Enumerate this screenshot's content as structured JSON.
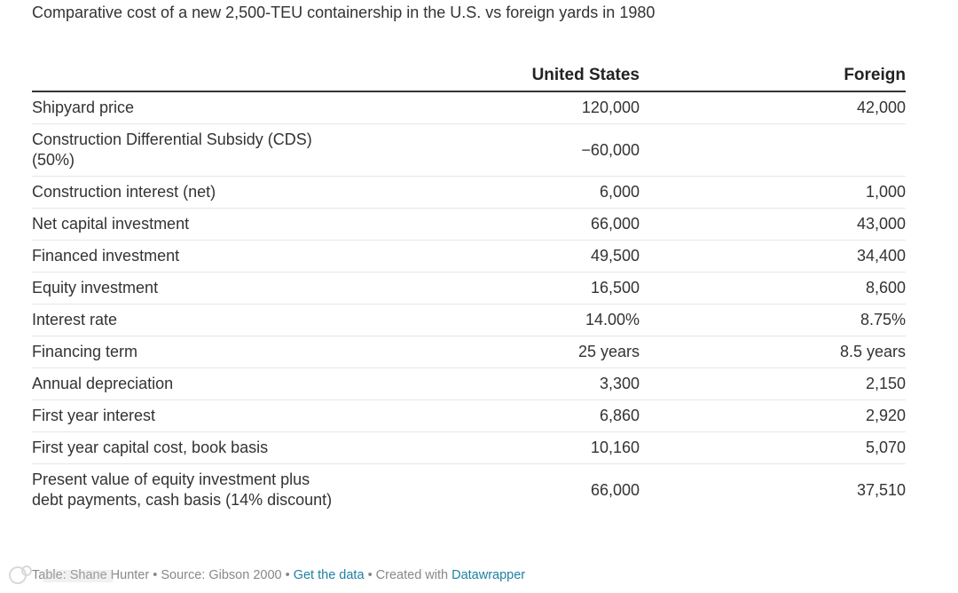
{
  "title": "Comparative cost of a new 2,500-TEU containership in the U.S. vs foreign yards in 1980",
  "chart_data": {
    "type": "table",
    "title": "Comparative cost of a new 2,500-TEU containership in the U.S. vs foreign yards in 1980",
    "columns": [
      "",
      "United States",
      "Foreign"
    ],
    "rows": [
      {
        "label": "Shipyard price",
        "us": "120,000",
        "foreign": "42,000"
      },
      {
        "label": "Construction Differential Subsidy (CDS) (50%)",
        "us": "−60,000",
        "foreign": ""
      },
      {
        "label": "Construction interest (net)",
        "us": "6,000",
        "foreign": "1,000"
      },
      {
        "label": "Net capital investment",
        "us": "66,000",
        "foreign": "43,000"
      },
      {
        "label": "Financed investment",
        "us": "49,500",
        "foreign": "34,400"
      },
      {
        "label": "Equity investment",
        "us": "16,500",
        "foreign": "8,600"
      },
      {
        "label": "Interest rate",
        "us": "14.00%",
        "foreign": "8.75%"
      },
      {
        "label": "Financing term",
        "us": "25 years",
        "foreign": "8.5 years"
      },
      {
        "label": "Annual depreciation",
        "us": "3,300",
        "foreign": "2,150"
      },
      {
        "label": "First year interest",
        "us": "6,860",
        "foreign": "2,920"
      },
      {
        "label": "First year capital cost, book basis",
        "us": "10,160",
        "foreign": "5,070"
      },
      {
        "label": "Present value of equity investment plus debt payments, cash basis (14% discount)",
        "us": "66,000",
        "foreign": "37,510"
      }
    ]
  },
  "footer": {
    "table_by": "Table: Shane Hunter",
    "source": "Source: Gibson 2000",
    "get_data": "Get the data",
    "created_with": "Created with",
    "datawrapper": "Datawrapper",
    "separator": "•"
  },
  "colors": {
    "text": "#333333",
    "rule": "#333333",
    "row_border": "#e6e6e6",
    "footer_text": "#888888",
    "link": "#1d81a2"
  }
}
